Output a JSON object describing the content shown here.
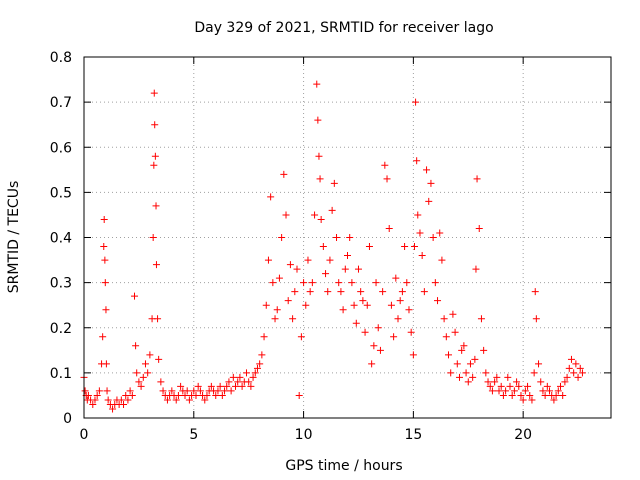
{
  "chart_data": {
    "type": "scatter",
    "title": "Day 329 of 2021, SRMTID for receiver lago",
    "xlabel": "GPS time / hours",
    "ylabel": "SRMTID / TECUs",
    "xlim": [
      0,
      24
    ],
    "ylim": [
      0,
      0.8
    ],
    "xticks": [
      0,
      5,
      10,
      15,
      20
    ],
    "yticks": [
      0,
      0.1,
      0.2,
      0.3,
      0.4,
      0.5,
      0.6,
      0.7,
      0.8
    ],
    "xtick_labels": [
      "0",
      "5",
      "10",
      "15",
      "20"
    ],
    "ytick_labels": [
      "0",
      "0.1",
      "0.2",
      "0.3",
      "0.4",
      "0.5",
      "0.6",
      "0.7",
      "0.8"
    ],
    "grid": true,
    "marker": "+",
    "marker_color": "#ff0000",
    "series": [
      {
        "name": "SRMTID",
        "x": [
          0.0,
          0.05,
          0.1,
          0.15,
          0.2,
          0.3,
          0.4,
          0.5,
          0.6,
          0.7,
          0.8,
          0.85,
          0.9,
          0.92,
          0.95,
          0.97,
          1.0,
          1.02,
          1.05,
          1.1,
          1.2,
          1.3,
          1.4,
          1.5,
          1.6,
          1.7,
          1.8,
          1.9,
          2.0,
          2.1,
          2.2,
          2.3,
          2.35,
          2.4,
          2.5,
          2.6,
          2.7,
          2.8,
          2.9,
          3.0,
          3.1,
          3.15,
          3.18,
          3.2,
          3.22,
          3.25,
          3.28,
          3.3,
          3.35,
          3.4,
          3.5,
          3.6,
          3.7,
          3.8,
          3.9,
          4.0,
          4.1,
          4.2,
          4.3,
          4.4,
          4.5,
          4.6,
          4.7,
          4.8,
          4.9,
          5.0,
          5.1,
          5.2,
          5.3,
          5.4,
          5.5,
          5.6,
          5.7,
          5.8,
          5.9,
          6.0,
          6.1,
          6.2,
          6.3,
          6.4,
          6.5,
          6.6,
          6.7,
          6.8,
          6.9,
          7.0,
          7.1,
          7.2,
          7.3,
          7.4,
          7.5,
          7.6,
          7.7,
          7.8,
          7.9,
          8.0,
          8.1,
          8.2,
          8.3,
          8.4,
          8.5,
          8.6,
          8.7,
          8.8,
          8.9,
          9.0,
          9.1,
          9.2,
          9.3,
          9.4,
          9.5,
          9.6,
          9.7,
          9.8,
          9.9,
          10.0,
          10.1,
          10.2,
          10.3,
          10.4,
          10.5,
          10.6,
          10.65,
          10.7,
          10.75,
          10.8,
          10.9,
          11.0,
          11.1,
          11.2,
          11.3,
          11.4,
          11.5,
          11.6,
          11.7,
          11.8,
          11.9,
          12.0,
          12.1,
          12.2,
          12.3,
          12.4,
          12.5,
          12.6,
          12.7,
          12.8,
          12.9,
          13.0,
          13.1,
          13.2,
          13.3,
          13.4,
          13.5,
          13.6,
          13.7,
          13.8,
          13.9,
          14.0,
          14.1,
          14.2,
          14.3,
          14.4,
          14.5,
          14.6,
          14.7,
          14.8,
          14.9,
          15.0,
          15.05,
          15.1,
          15.15,
          15.2,
          15.3,
          15.4,
          15.5,
          15.6,
          15.7,
          15.8,
          15.9,
          16.0,
          16.1,
          16.2,
          16.3,
          16.4,
          16.5,
          16.6,
          16.7,
          16.8,
          16.9,
          17.0,
          17.1,
          17.2,
          17.3,
          17.4,
          17.5,
          17.6,
          17.7,
          17.8,
          17.85,
          17.9,
          18.0,
          18.1,
          18.2,
          18.3,
          18.4,
          18.5,
          18.6,
          18.7,
          18.8,
          18.9,
          19.0,
          19.1,
          19.2,
          19.3,
          19.4,
          19.5,
          19.6,
          19.7,
          19.8,
          19.9,
          20.0,
          20.1,
          20.2,
          20.3,
          20.4,
          20.5,
          20.55,
          20.6,
          20.7,
          20.8,
          20.9,
          21.0,
          21.1,
          21.2,
          21.3,
          21.4,
          21.5,
          21.6,
          21.7,
          21.8,
          21.9,
          22.0,
          22.1,
          22.2,
          22.3,
          22.4,
          22.5,
          22.6,
          22.7
        ],
        "y": [
          0.09,
          0.06,
          0.05,
          0.04,
          0.05,
          0.04,
          0.03,
          0.04,
          0.05,
          0.06,
          0.12,
          0.18,
          0.38,
          0.44,
          0.35,
          0.3,
          0.24,
          0.12,
          0.06,
          0.04,
          0.03,
          0.02,
          0.03,
          0.04,
          0.03,
          0.04,
          0.03,
          0.05,
          0.04,
          0.06,
          0.05,
          0.27,
          0.16,
          0.1,
          0.08,
          0.07,
          0.09,
          0.12,
          0.1,
          0.14,
          0.22,
          0.4,
          0.56,
          0.72,
          0.65,
          0.58,
          0.47,
          0.34,
          0.22,
          0.13,
          0.08,
          0.06,
          0.05,
          0.04,
          0.05,
          0.06,
          0.05,
          0.04,
          0.05,
          0.07,
          0.06,
          0.05,
          0.06,
          0.04,
          0.05,
          0.06,
          0.05,
          0.07,
          0.06,
          0.05,
          0.04,
          0.05,
          0.06,
          0.07,
          0.06,
          0.05,
          0.06,
          0.07,
          0.05,
          0.06,
          0.07,
          0.08,
          0.06,
          0.09,
          0.07,
          0.08,
          0.09,
          0.07,
          0.08,
          0.1,
          0.08,
          0.07,
          0.09,
          0.1,
          0.11,
          0.12,
          0.14,
          0.18,
          0.25,
          0.35,
          0.49,
          0.3,
          0.22,
          0.24,
          0.31,
          0.4,
          0.54,
          0.45,
          0.26,
          0.34,
          0.22,
          0.28,
          0.33,
          0.05,
          0.18,
          0.3,
          0.25,
          0.35,
          0.28,
          0.3,
          0.45,
          0.74,
          0.66,
          0.58,
          0.53,
          0.44,
          0.38,
          0.32,
          0.28,
          0.35,
          0.46,
          0.52,
          0.4,
          0.3,
          0.28,
          0.24,
          0.33,
          0.36,
          0.4,
          0.3,
          0.25,
          0.21,
          0.33,
          0.28,
          0.26,
          0.19,
          0.25,
          0.38,
          0.12,
          0.16,
          0.3,
          0.2,
          0.15,
          0.28,
          0.56,
          0.53,
          0.42,
          0.25,
          0.18,
          0.31,
          0.22,
          0.26,
          0.28,
          0.38,
          0.3,
          0.24,
          0.19,
          0.14,
          0.38,
          0.7,
          0.57,
          0.45,
          0.41,
          0.36,
          0.28,
          0.55,
          0.48,
          0.52,
          0.4,
          0.3,
          0.26,
          0.41,
          0.35,
          0.22,
          0.18,
          0.14,
          0.1,
          0.23,
          0.19,
          0.12,
          0.09,
          0.15,
          0.16,
          0.1,
          0.08,
          0.12,
          0.09,
          0.13,
          0.33,
          0.53,
          0.42,
          0.22,
          0.15,
          0.1,
          0.08,
          0.07,
          0.06,
          0.08,
          0.09,
          0.06,
          0.07,
          0.05,
          0.06,
          0.09,
          0.07,
          0.05,
          0.06,
          0.08,
          0.07,
          0.05,
          0.04,
          0.06,
          0.07,
          0.05,
          0.04,
          0.1,
          0.28,
          0.22,
          0.12,
          0.08,
          0.06,
          0.05,
          0.07,
          0.06,
          0.05,
          0.04,
          0.05,
          0.06,
          0.07,
          0.05,
          0.08,
          0.09,
          0.11,
          0.13,
          0.1,
          0.12,
          0.09,
          0.11,
          0.1
        ]
      }
    ]
  }
}
